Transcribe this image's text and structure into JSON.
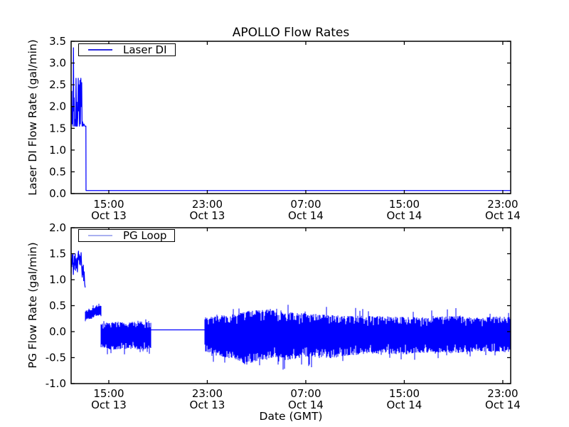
{
  "figure": {
    "title": "APOLLO Flow Rates",
    "xlabel": "Date (GMT)",
    "background_color": "#ffffff",
    "axis_color": "#000000",
    "line_color": "#0000ff"
  },
  "chart_data": [
    {
      "type": "line",
      "name": "laser-di-subplot",
      "title": "APOLLO Flow Rates",
      "ylabel": "Laser DI Flow Rate (gal/min)",
      "legend": {
        "label": "Laser DI",
        "swatch_color": "#2a2ae0",
        "position": "upper left"
      },
      "ylim": [
        0.0,
        3.5
      ],
      "yticks": [
        {
          "v": 0.0,
          "label": "0.0"
        },
        {
          "v": 0.5,
          "label": "0.5"
        },
        {
          "v": 1.0,
          "label": "1.0"
        },
        {
          "v": 1.5,
          "label": "1.5"
        },
        {
          "v": 2.0,
          "label": "2.0"
        },
        {
          "v": 2.5,
          "label": "2.5"
        },
        {
          "v": 3.0,
          "label": "3.0"
        },
        {
          "v": 3.5,
          "label": "3.5"
        }
      ],
      "x_hours_lim": [
        11.94,
        47.64
      ],
      "xticks": [
        {
          "v": 15,
          "time": "15:00",
          "date": "Oct 13"
        },
        {
          "v": 23,
          "time": "23:00",
          "date": "Oct 13"
        },
        {
          "v": 31,
          "time": "07:00",
          "date": "Oct 14"
        },
        {
          "v": 39,
          "time": "15:00",
          "date": "Oct 14"
        },
        {
          "v": 47,
          "time": "23:00",
          "date": "Oct 14"
        }
      ],
      "series": [
        {
          "name": "Laser DI",
          "color": "#0000ff",
          "segments": [
            {
              "kind": "polyline",
              "points": [
                [
                  11.94,
                  1.55
                ],
                [
                  11.97,
                  2.0
                ],
                [
                  12.0,
                  2.35
                ],
                [
                  12.02,
                  1.6
                ],
                [
                  12.06,
                  2.0
                ],
                [
                  12.1,
                  1.55
                ],
                [
                  12.13,
                  3.35
                ],
                [
                  12.16,
                  1.9
                ],
                [
                  12.19,
                  2.2
                ],
                [
                  12.22,
                  1.55
                ],
                [
                  12.26,
                  1.7
                ],
                [
                  12.3,
                  1.55
                ],
                [
                  12.34,
                  2.65
                ],
                [
                  12.38,
                  1.55
                ],
                [
                  12.41,
                  2.1
                ],
                [
                  12.44,
                  1.55
                ],
                [
                  12.48,
                  1.75
                ],
                [
                  12.52,
                  2.65
                ],
                [
                  12.55,
                  1.9
                ],
                [
                  12.58,
                  2.5
                ],
                [
                  12.62,
                  1.55
                ],
                [
                  12.66,
                  2.6
                ],
                [
                  12.69,
                  1.6
                ],
                [
                  12.73,
                  2.65
                ],
                [
                  12.76,
                  2.0
                ],
                [
                  12.8,
                  2.55
                ],
                [
                  12.83,
                  1.55
                ],
                [
                  12.87,
                  1.65
                ],
                [
                  12.92,
                  1.55
                ],
                [
                  12.98,
                  1.6
                ],
                [
                  13.05,
                  1.55
                ],
                [
                  13.14,
                  1.55
                ],
                [
                  13.15,
                  0.07
                ],
                [
                  47.64,
                  0.07
                ]
              ]
            }
          ]
        }
      ]
    },
    {
      "type": "line",
      "name": "pg-loop-subplot",
      "ylabel": "PG Flow Rate (gal/min)",
      "xlabel": "Date (GMT)",
      "legend": {
        "label": "PG Loop",
        "swatch_color": "#aab0f0",
        "position": "upper left"
      },
      "ylim": [
        -1.0,
        2.0
      ],
      "yticks": [
        {
          "v": -1.0,
          "label": "-1.0"
        },
        {
          "v": -0.5,
          "label": "-0.5"
        },
        {
          "v": 0.0,
          "label": "0.0"
        },
        {
          "v": 0.5,
          "label": "0.5"
        },
        {
          "v": 1.0,
          "label": "1.0"
        },
        {
          "v": 1.5,
          "label": "1.5"
        },
        {
          "v": 2.0,
          "label": "2.0"
        }
      ],
      "x_hours_lim": [
        11.94,
        47.64
      ],
      "xticks": [
        {
          "v": 15,
          "time": "15:00",
          "date": "Oct 13"
        },
        {
          "v": 23,
          "time": "23:00",
          "date": "Oct 13"
        },
        {
          "v": 31,
          "time": "07:00",
          "date": "Oct 14"
        },
        {
          "v": 39,
          "time": "15:00",
          "date": "Oct 14"
        },
        {
          "v": 47,
          "time": "23:00",
          "date": "Oct 14"
        }
      ],
      "series": [
        {
          "name": "PG Loop",
          "color": "#0000ff",
          "segments": [
            {
              "kind": "polyline",
              "points": [
                [
                  11.94,
                  1.12
                ],
                [
                  11.97,
                  1.4
                ],
                [
                  12.0,
                  1.25
                ],
                [
                  12.03,
                  1.48
                ],
                [
                  12.06,
                  1.3
                ],
                [
                  12.09,
                  1.5
                ],
                [
                  12.12,
                  1.1
                ],
                [
                  12.15,
                  1.32
                ],
                [
                  12.18,
                  1.2
                ],
                [
                  12.21,
                  1.45
                ],
                [
                  12.24,
                  1.28
                ],
                [
                  12.27,
                  1.5
                ],
                [
                  12.3,
                  1.18
                ],
                [
                  12.33,
                  1.4
                ],
                [
                  12.36,
                  1.3
                ],
                [
                  12.39,
                  1.22
                ],
                [
                  12.42,
                  1.42
                ],
                [
                  12.45,
                  1.15
                ],
                [
                  12.48,
                  1.35
                ],
                [
                  12.51,
                  1.5
                ],
                [
                  12.54,
                  1.55
                ],
                [
                  12.57,
                  1.38
                ],
                [
                  12.6,
                  1.48
                ],
                [
                  12.63,
                  1.3
                ],
                [
                  12.66,
                  1.45
                ],
                [
                  12.69,
                  1.28
                ],
                [
                  12.72,
                  1.4
                ],
                [
                  12.75,
                  1.52
                ],
                [
                  12.78,
                  1.35
                ],
                [
                  12.81,
                  1.2
                ],
                [
                  12.84,
                  1.05
                ],
                [
                  12.87,
                  1.25
                ],
                [
                  12.9,
                  1.1
                ],
                [
                  12.93,
                  1.28
                ],
                [
                  12.96,
                  0.98
                ],
                [
                  13.0,
                  1.15
                ],
                [
                  13.04,
                  0.92
                ],
                [
                  13.08,
                  0.85
                ]
              ]
            },
            {
              "kind": "band",
              "env": [
                [
                  13.08,
                  0.22,
                  0.4
                ],
                [
                  13.6,
                  0.25,
                  0.44
                ],
                [
                  14.0,
                  0.3,
                  0.52
                ],
                [
                  14.38,
                  0.32,
                  0.5
                ]
              ]
            },
            {
              "kind": "band",
              "env": [
                [
                  14.38,
                  -0.3,
                  0.15
                ],
                [
                  15.2,
                  -0.35,
                  0.2
                ],
                [
                  16.5,
                  -0.33,
                  0.18
                ],
                [
                  17.6,
                  -0.35,
                  0.2
                ],
                [
                  18.42,
                  -0.32,
                  0.17
                ]
              ]
            },
            {
              "kind": "polyline",
              "points": [
                [
                  18.42,
                  0.035
                ],
                [
                  22.82,
                  0.035
                ]
              ]
            },
            {
              "kind": "band",
              "env": [
                [
                  22.82,
                  -0.38,
                  0.28
                ],
                [
                  23.5,
                  -0.45,
                  0.3
                ],
                [
                  24.5,
                  -0.5,
                  0.32
                ],
                [
                  25.5,
                  -0.55,
                  0.35
                ],
                [
                  26.3,
                  -0.65,
                  0.4
                ],
                [
                  27.5,
                  -0.55,
                  0.42
                ],
                [
                  28.5,
                  -0.52,
                  0.45
                ],
                [
                  29.5,
                  -0.55,
                  0.38
                ],
                [
                  31.0,
                  -0.5,
                  0.35
                ],
                [
                  33.0,
                  -0.52,
                  0.32
                ],
                [
                  35.0,
                  -0.45,
                  0.3
                ],
                [
                  37.0,
                  -0.42,
                  0.3
                ],
                [
                  39.0,
                  -0.44,
                  0.28
                ],
                [
                  41.0,
                  -0.4,
                  0.28
                ],
                [
                  43.0,
                  -0.42,
                  0.3
                ],
                [
                  45.0,
                  -0.38,
                  0.28
                ],
                [
                  47.64,
                  -0.4,
                  0.3
                ]
              ]
            }
          ]
        }
      ]
    }
  ]
}
